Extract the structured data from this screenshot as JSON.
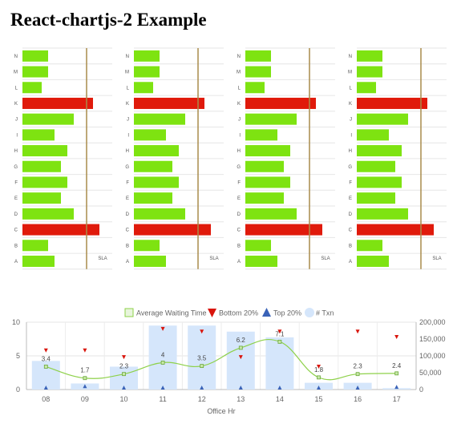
{
  "page_title": "React-chartjs-2 Example",
  "chart_data": [
    {
      "type": "bar",
      "orientation": "horizontal",
      "categories": [
        "N",
        "M",
        "L",
        "K",
        "J",
        "I",
        "H",
        "G",
        "F",
        "E",
        "D",
        "C",
        "B",
        "A"
      ],
      "values": [
        4,
        4,
        3,
        11,
        8,
        5,
        7,
        6,
        7,
        6,
        8,
        12,
        4,
        5
      ],
      "highlight_categories": [
        "K",
        "C"
      ],
      "xlim": [
        0,
        14
      ],
      "reference_line": {
        "label": "SLA",
        "value": 10
      },
      "colors": {
        "bar": "#7ee311",
        "highlight": "#e01a0b",
        "sla_line": "#a98b4b"
      }
    },
    {
      "type": "bar",
      "orientation": "horizontal",
      "categories": [
        "N",
        "M",
        "L",
        "K",
        "J",
        "I",
        "H",
        "G",
        "F",
        "E",
        "D",
        "C",
        "B",
        "A"
      ],
      "values": [
        4,
        4,
        3,
        11,
        8,
        5,
        7,
        6,
        7,
        6,
        8,
        12,
        4,
        5
      ],
      "highlight_categories": [
        "K",
        "C"
      ],
      "xlim": [
        0,
        14
      ],
      "reference_line": {
        "label": "SLA",
        "value": 10
      },
      "colors": {
        "bar": "#7ee311",
        "highlight": "#e01a0b",
        "sla_line": "#a98b4b"
      }
    },
    {
      "type": "bar",
      "orientation": "horizontal",
      "categories": [
        "N",
        "M",
        "L",
        "K",
        "J",
        "I",
        "H",
        "G",
        "F",
        "E",
        "D",
        "C",
        "B",
        "A"
      ],
      "values": [
        4,
        4,
        3,
        11,
        8,
        5,
        7,
        6,
        7,
        6,
        8,
        12,
        4,
        5
      ],
      "highlight_categories": [
        "K",
        "C"
      ],
      "xlim": [
        0,
        14
      ],
      "reference_line": {
        "label": "SLA",
        "value": 10
      },
      "colors": {
        "bar": "#7ee311",
        "highlight": "#e01a0b",
        "sla_line": "#a98b4b"
      }
    },
    {
      "type": "bar",
      "orientation": "horizontal",
      "categories": [
        "N",
        "M",
        "L",
        "K",
        "J",
        "I",
        "H",
        "G",
        "F",
        "E",
        "D",
        "C",
        "B",
        "A"
      ],
      "values": [
        4,
        4,
        3,
        11,
        8,
        5,
        7,
        6,
        7,
        6,
        8,
        12,
        4,
        5
      ],
      "highlight_categories": [
        "K",
        "C"
      ],
      "xlim": [
        0,
        14
      ],
      "reference_line": {
        "label": "SLA",
        "value": 10
      },
      "colors": {
        "bar": "#7ee311",
        "highlight": "#e01a0b",
        "sla_line": "#a98b4b"
      }
    },
    {
      "type": "bar",
      "combo": true,
      "xlabel": "Office Hr",
      "categories": [
        "08",
        "09",
        "10",
        "11",
        "12",
        "13",
        "14",
        "15",
        "16",
        "17"
      ],
      "ylim_left": [
        0,
        10
      ],
      "yticks_left": [
        0,
        5,
        10
      ],
      "ylim_right": [
        0,
        200000
      ],
      "yticks_right": [
        "0",
        "50,000",
        "100,000",
        "150,000",
        "200,000"
      ],
      "legend_position": "top",
      "series": [
        {
          "name": "Average Waiting Time",
          "type": "line",
          "axis": "left",
          "values": [
            3.4,
            1.7,
            2.3,
            4,
            3.5,
            6.2,
            7.1,
            1.8,
            2.3,
            2.4
          ],
          "labels": [
            "3.4",
            "1.7",
            "2.3",
            "4",
            "3.5",
            "6.2",
            "7.1",
            "1.8",
            "2.3",
            "2.4"
          ],
          "color": "#8ed14a"
        },
        {
          "name": "Bottom 20%",
          "type": "scatter",
          "marker": "triangle-down",
          "axis": "left",
          "values": [
            5.8,
            5.8,
            4.8,
            9,
            8.6,
            4.8,
            8.6,
            3.4,
            8.6,
            7.8
          ],
          "color": "#d9150c"
        },
        {
          "name": "Top 20%",
          "type": "scatter",
          "marker": "triangle-up",
          "axis": "left",
          "values": [
            0.3,
            0.5,
            0.3,
            0.3,
            0.3,
            0.3,
            0.3,
            0.3,
            0.3,
            0.4
          ],
          "color": "#3a63b8"
        },
        {
          "name": "# Txn",
          "type": "bar",
          "axis": "right",
          "values": [
            85000,
            18000,
            68000,
            190000,
            190000,
            172000,
            155000,
            20000,
            20000,
            4000
          ],
          "color": "#d5e6fb"
        }
      ]
    }
  ]
}
